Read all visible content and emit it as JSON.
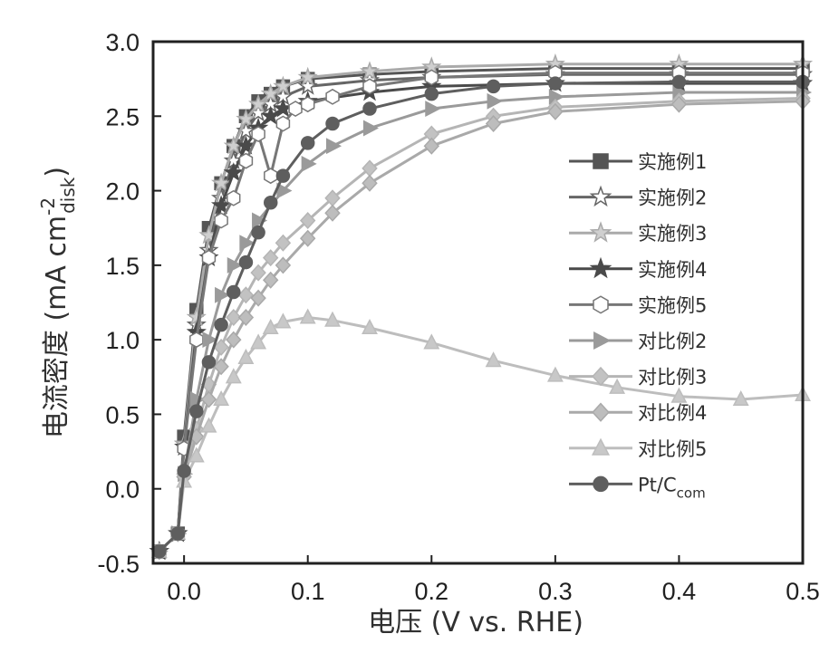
{
  "chart_data": {
    "type": "line",
    "xlabel": "电压 (V vs. RHE)",
    "ylabel": {
      "main": "电流密度 (mA cm",
      "sup": "-2",
      "sub": "disk",
      "close": ")"
    },
    "xlim": [
      -0.025,
      0.5
    ],
    "ylim": [
      -0.5,
      3.0
    ],
    "xticks": [
      {
        "value": 0.0,
        "label": "0.0"
      },
      {
        "value": 0.1,
        "label": "0.1"
      },
      {
        "value": 0.2,
        "label": "0.2"
      },
      {
        "value": 0.3,
        "label": "0.3"
      },
      {
        "value": 0.4,
        "label": "0.4"
      },
      {
        "value": 0.5,
        "label": "0.5"
      }
    ],
    "yticks": [
      {
        "value": -0.5,
        "label": "-0.5"
      },
      {
        "value": 0.0,
        "label": "0.0"
      },
      {
        "value": 0.5,
        "label": "0.5"
      },
      {
        "value": 1.0,
        "label": "1.0"
      },
      {
        "value": 1.5,
        "label": "1.5"
      },
      {
        "value": 2.0,
        "label": "2.0"
      },
      {
        "value": 2.5,
        "label": "2.5"
      },
      {
        "value": 3.0,
        "label": "3.0"
      }
    ],
    "grid": false,
    "legend_position": "right",
    "series": [
      {
        "name": "实施例1",
        "marker": "square",
        "color": "#555555",
        "fill": "#555555",
        "x": [
          -0.02,
          -0.005,
          0.0,
          0.01,
          0.02,
          0.03,
          0.04,
          0.05,
          0.06,
          0.07,
          0.08,
          0.1,
          0.15,
          0.2,
          0.3,
          0.4,
          0.5
        ],
        "y": [
          -0.42,
          -0.3,
          0.35,
          1.2,
          1.75,
          2.05,
          2.3,
          2.5,
          2.6,
          2.65,
          2.7,
          2.75,
          2.78,
          2.8,
          2.82,
          2.82,
          2.82
        ]
      },
      {
        "name": "实施例2",
        "marker": "star",
        "color": "#666666",
        "fill": "#ffffff",
        "x": [
          -0.02,
          -0.005,
          0.0,
          0.01,
          0.02,
          0.03,
          0.04,
          0.05,
          0.06,
          0.07,
          0.08,
          0.1,
          0.15,
          0.2,
          0.3,
          0.4,
          0.5
        ],
        "y": [
          -0.42,
          -0.3,
          0.3,
          1.1,
          1.6,
          1.95,
          2.2,
          2.4,
          2.52,
          2.58,
          2.63,
          2.7,
          2.74,
          2.76,
          2.78,
          2.78,
          2.78
        ]
      },
      {
        "name": "实施例3",
        "marker": "star",
        "color": "#aaaaaa",
        "fill": "#cfcfcf",
        "x": [
          -0.02,
          -0.005,
          0.0,
          0.01,
          0.02,
          0.03,
          0.04,
          0.05,
          0.06,
          0.07,
          0.08,
          0.1,
          0.15,
          0.2,
          0.3,
          0.4,
          0.5
        ],
        "y": [
          -0.42,
          -0.3,
          0.3,
          1.15,
          1.7,
          2.05,
          2.3,
          2.48,
          2.58,
          2.65,
          2.7,
          2.76,
          2.8,
          2.83,
          2.85,
          2.85,
          2.85
        ]
      },
      {
        "name": "实施例4",
        "marker": "star",
        "color": "#4a4a4a",
        "fill": "#4a4a4a",
        "x": [
          -0.02,
          -0.005,
          0.0,
          0.01,
          0.02,
          0.03,
          0.04,
          0.05,
          0.06,
          0.07,
          0.08,
          0.1,
          0.15,
          0.2,
          0.3,
          0.4,
          0.5
        ],
        "y": [
          -0.42,
          -0.3,
          0.28,
          1.05,
          1.55,
          1.9,
          2.12,
          2.3,
          2.42,
          2.5,
          2.55,
          2.6,
          2.66,
          2.7,
          2.72,
          2.72,
          2.72
        ]
      },
      {
        "name": "实施例5",
        "marker": "hexagon",
        "color": "#777777",
        "fill": "#ffffff",
        "x": [
          -0.02,
          -0.005,
          0.0,
          0.01,
          0.02,
          0.03,
          0.04,
          0.05,
          0.06,
          0.07,
          0.08,
          0.09,
          0.1,
          0.12,
          0.15,
          0.2,
          0.3,
          0.4,
          0.5
        ],
        "y": [
          -0.42,
          -0.3,
          0.27,
          1.0,
          1.55,
          1.8,
          1.95,
          2.2,
          2.38,
          2.1,
          2.45,
          2.55,
          2.58,
          2.63,
          2.7,
          2.76,
          2.79,
          2.79,
          2.79
        ]
      },
      {
        "name": "对比例2",
        "marker": "triangle-right",
        "color": "#9a9a9a",
        "fill": "#9a9a9a",
        "x": [
          -0.02,
          -0.005,
          0.0,
          0.01,
          0.02,
          0.03,
          0.04,
          0.05,
          0.06,
          0.08,
          0.1,
          0.12,
          0.15,
          0.2,
          0.25,
          0.3,
          0.4,
          0.5
        ],
        "y": [
          -0.42,
          -0.3,
          0.1,
          0.6,
          1.0,
          1.3,
          1.5,
          1.65,
          1.8,
          2.0,
          2.18,
          2.3,
          2.42,
          2.55,
          2.6,
          2.63,
          2.66,
          2.66
        ]
      },
      {
        "name": "对比例3",
        "marker": "diamond",
        "color": "#b5b5b5",
        "fill": "#c2c2c2",
        "x": [
          -0.02,
          -0.005,
          0.0,
          0.01,
          0.02,
          0.03,
          0.04,
          0.05,
          0.06,
          0.07,
          0.08,
          0.1,
          0.12,
          0.15,
          0.2,
          0.25,
          0.3,
          0.4,
          0.5
        ],
        "y": [
          -0.42,
          -0.3,
          0.1,
          0.4,
          0.7,
          0.95,
          1.15,
          1.3,
          1.45,
          1.55,
          1.65,
          1.8,
          1.95,
          2.15,
          2.38,
          2.5,
          2.56,
          2.6,
          2.62
        ]
      },
      {
        "name": "对比例4",
        "marker": "diamond",
        "color": "#a9a9a9",
        "fill": "#bdbdbd",
        "x": [
          -0.02,
          -0.005,
          0.0,
          0.01,
          0.02,
          0.03,
          0.04,
          0.05,
          0.06,
          0.07,
          0.08,
          0.1,
          0.12,
          0.15,
          0.2,
          0.25,
          0.3,
          0.4,
          0.5
        ],
        "y": [
          -0.42,
          -0.3,
          0.08,
          0.35,
          0.6,
          0.82,
          1.0,
          1.15,
          1.28,
          1.4,
          1.5,
          1.68,
          1.85,
          2.05,
          2.3,
          2.45,
          2.53,
          2.58,
          2.6
        ]
      },
      {
        "name": "对比例5",
        "marker": "triangle-up",
        "color": "#bdbdbd",
        "fill": "#c8c8c8",
        "x": [
          -0.02,
          -0.005,
          0.0,
          0.01,
          0.02,
          0.03,
          0.04,
          0.05,
          0.06,
          0.07,
          0.08,
          0.1,
          0.12,
          0.15,
          0.2,
          0.25,
          0.3,
          0.35,
          0.4,
          0.45,
          0.5
        ],
        "y": [
          -0.42,
          -0.3,
          0.05,
          0.22,
          0.42,
          0.6,
          0.75,
          0.88,
          0.98,
          1.08,
          1.12,
          1.15,
          1.13,
          1.08,
          0.98,
          0.86,
          0.76,
          0.68,
          0.62,
          0.6,
          0.63
        ]
      },
      {
        "name_main": "Pt/C",
        "name_sub": "com",
        "marker": "circle",
        "color": "#5e5e5e",
        "fill": "#5e5e5e",
        "x": [
          -0.02,
          -0.005,
          0.0,
          0.01,
          0.02,
          0.03,
          0.04,
          0.05,
          0.06,
          0.07,
          0.08,
          0.1,
          0.12,
          0.15,
          0.2,
          0.25,
          0.3,
          0.4,
          0.5
        ],
        "y": [
          -0.42,
          -0.3,
          0.12,
          0.52,
          0.85,
          1.1,
          1.32,
          1.52,
          1.72,
          1.92,
          2.1,
          2.32,
          2.45,
          2.55,
          2.65,
          2.7,
          2.72,
          2.73,
          2.73
        ]
      }
    ]
  }
}
